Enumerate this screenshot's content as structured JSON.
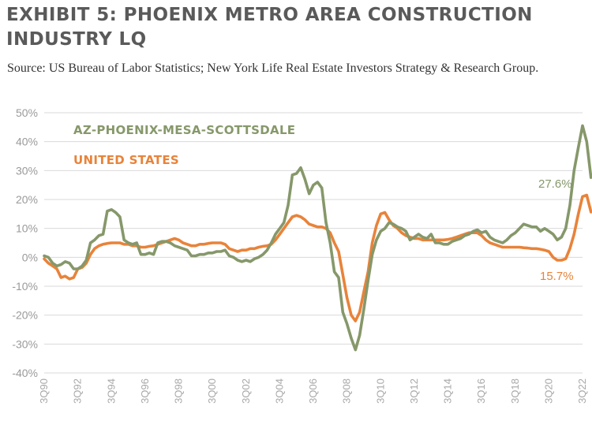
{
  "header": {
    "title": "EXHIBIT 5: PHOENIX METRO AREA CONSTRUCTION INDUSTRY LQ",
    "source": "Source: US Bureau of Labor Statistics; New York Life Real Estate Investors Strategy & Research Group."
  },
  "colors": {
    "phoenix": "#86986a",
    "us": "#e8833a",
    "grid": "#d9d9d9",
    "axis_text": "#9a9a9a"
  },
  "chart_data": {
    "type": "line",
    "title": "EXHIBIT 5: PHOENIX METRO AREA CONSTRUCTION INDUSTRY LQ",
    "xlabel": "",
    "ylabel": "",
    "ylim": [
      -40,
      50
    ],
    "yticks": [
      -40,
      -30,
      -20,
      -10,
      0,
      10,
      20,
      30,
      40,
      50
    ],
    "ytick_labels": [
      "-40%",
      "-30%",
      "-20%",
      "-10%",
      "0%",
      "10%",
      "20%",
      "30%",
      "40%",
      "50%"
    ],
    "xlim": [
      1990.5,
      2022.5
    ],
    "xticks": [
      1990.5,
      1992.5,
      1994.5,
      1996.5,
      1998.5,
      2000.5,
      2002.5,
      2004.5,
      2006.5,
      2008.5,
      2010.5,
      2012.5,
      2014.5,
      2016.5,
      2018.5,
      2020.5,
      2022.5
    ],
    "xtick_labels": [
      "3Q90",
      "3Q92",
      "3Q94",
      "3Q96",
      "3Q98",
      "3Q00",
      "3Q02",
      "3Q04",
      "3Q06",
      "3Q08",
      "3Q10",
      "3Q12",
      "3Q14",
      "3Q16",
      "3Q18",
      "3Q20",
      "3Q22"
    ],
    "grid": true,
    "legend": "top-left",
    "series": [
      {
        "name": "AZ-PHOENIX-MESA-SCOTTSDALE",
        "end_label": "27.6%",
        "points": [
          [
            1990.5,
            0.5
          ],
          [
            1990.75,
            0
          ],
          [
            1991.0,
            -2
          ],
          [
            1991.25,
            -3
          ],
          [
            1991.5,
            -2.5
          ],
          [
            1991.75,
            -1.5
          ],
          [
            1992.0,
            -2
          ],
          [
            1992.25,
            -4
          ],
          [
            1992.5,
            -4
          ],
          [
            1992.75,
            -3
          ],
          [
            1993.0,
            -1
          ],
          [
            1993.25,
            5
          ],
          [
            1993.5,
            6
          ],
          [
            1993.75,
            7.5
          ],
          [
            1994.0,
            8
          ],
          [
            1994.25,
            16
          ],
          [
            1994.5,
            16.5
          ],
          [
            1994.75,
            15.5
          ],
          [
            1995.0,
            14
          ],
          [
            1995.25,
            6
          ],
          [
            1995.5,
            5
          ],
          [
            1995.75,
            4.5
          ],
          [
            1996.0,
            5
          ],
          [
            1996.25,
            1
          ],
          [
            1996.5,
            1
          ],
          [
            1996.75,
            1.5
          ],
          [
            1997.0,
            1
          ],
          [
            1997.25,
            5
          ],
          [
            1997.5,
            5.5
          ],
          [
            1997.75,
            5.5
          ],
          [
            1998.0,
            5
          ],
          [
            1998.25,
            4
          ],
          [
            1998.5,
            3.5
          ],
          [
            1998.75,
            3
          ],
          [
            1999.0,
            2.5
          ],
          [
            1999.25,
            0.5
          ],
          [
            1999.5,
            0.5
          ],
          [
            1999.75,
            1
          ],
          [
            2000.0,
            1
          ],
          [
            2000.25,
            1.5
          ],
          [
            2000.5,
            1.5
          ],
          [
            2000.75,
            2
          ],
          [
            2001.0,
            2
          ],
          [
            2001.25,
            2.5
          ],
          [
            2001.5,
            0.5
          ],
          [
            2001.75,
            0
          ],
          [
            2002.0,
            -1
          ],
          [
            2002.25,
            -1.5
          ],
          [
            2002.5,
            -1
          ],
          [
            2002.75,
            -1.5
          ],
          [
            2003.0,
            -0.5
          ],
          [
            2003.25,
            0
          ],
          [
            2003.5,
            1
          ],
          [
            2003.75,
            2.5
          ],
          [
            2004.0,
            5
          ],
          [
            2004.25,
            8
          ],
          [
            2004.5,
            10
          ],
          [
            2004.75,
            12
          ],
          [
            2005.0,
            18
          ],
          [
            2005.25,
            28.5
          ],
          [
            2005.5,
            29
          ],
          [
            2005.75,
            31
          ],
          [
            2006.0,
            27
          ],
          [
            2006.25,
            22
          ],
          [
            2006.5,
            25
          ],
          [
            2006.75,
            26
          ],
          [
            2007.0,
            24
          ],
          [
            2007.25,
            12
          ],
          [
            2007.5,
            5
          ],
          [
            2007.75,
            -5
          ],
          [
            2008.0,
            -7
          ],
          [
            2008.25,
            -19
          ],
          [
            2008.5,
            -23
          ],
          [
            2008.75,
            -28
          ],
          [
            2009.0,
            -32
          ],
          [
            2009.25,
            -27
          ],
          [
            2009.5,
            -18
          ],
          [
            2009.75,
            -8
          ],
          [
            2010.0,
            1
          ],
          [
            2010.25,
            6
          ],
          [
            2010.5,
            9
          ],
          [
            2010.75,
            10
          ],
          [
            2011.0,
            12
          ],
          [
            2011.25,
            11.5
          ],
          [
            2011.5,
            10.5
          ],
          [
            2011.75,
            10
          ],
          [
            2012.0,
            9
          ],
          [
            2012.25,
            6
          ],
          [
            2012.5,
            7
          ],
          [
            2012.75,
            8
          ],
          [
            2013.0,
            7
          ],
          [
            2013.25,
            6.5
          ],
          [
            2013.5,
            8
          ],
          [
            2013.75,
            5
          ],
          [
            2014.0,
            5
          ],
          [
            2014.25,
            4.5
          ],
          [
            2014.5,
            4.5
          ],
          [
            2014.75,
            5.5
          ],
          [
            2015.0,
            6
          ],
          [
            2015.25,
            6.5
          ],
          [
            2015.5,
            7.5
          ],
          [
            2015.75,
            8
          ],
          [
            2016.0,
            9
          ],
          [
            2016.25,
            9.5
          ],
          [
            2016.5,
            8.5
          ],
          [
            2016.75,
            9
          ],
          [
            2017.0,
            7
          ],
          [
            2017.25,
            6
          ],
          [
            2017.5,
            5.5
          ],
          [
            2017.75,
            5
          ],
          [
            2018.0,
            6
          ],
          [
            2018.25,
            7.5
          ],
          [
            2018.5,
            8.5
          ],
          [
            2018.75,
            10
          ],
          [
            2019.0,
            11.5
          ],
          [
            2019.25,
            11
          ],
          [
            2019.5,
            10.5
          ],
          [
            2019.75,
            10.5
          ],
          [
            2020.0,
            9
          ],
          [
            2020.25,
            10
          ],
          [
            2020.5,
            9
          ],
          [
            2020.75,
            8
          ],
          [
            2021.0,
            6
          ],
          [
            2021.25,
            7
          ],
          [
            2021.5,
            10
          ],
          [
            2021.75,
            18
          ],
          [
            2022.0,
            30
          ],
          [
            2022.25,
            38
          ],
          [
            2022.5,
            45.5
          ],
          [
            2022.75,
            40
          ],
          [
            2023.0,
            27.6
          ]
        ]
      },
      {
        "name": "UNITED STATES",
        "end_label": "15.7%",
        "points": [
          [
            1990.5,
            -0.5
          ],
          [
            1990.75,
            -2
          ],
          [
            1991.0,
            -3
          ],
          [
            1991.25,
            -4
          ],
          [
            1991.5,
            -7
          ],
          [
            1991.75,
            -6.5
          ],
          [
            1992.0,
            -7.5
          ],
          [
            1992.25,
            -7
          ],
          [
            1992.5,
            -4
          ],
          [
            1992.75,
            -3.5
          ],
          [
            1993.0,
            -2
          ],
          [
            1993.25,
            1
          ],
          [
            1993.5,
            3
          ],
          [
            1993.75,
            4
          ],
          [
            1994.0,
            4.5
          ],
          [
            1994.25,
            4.8
          ],
          [
            1994.5,
            5
          ],
          [
            1994.75,
            5
          ],
          [
            1995.0,
            5
          ],
          [
            1995.25,
            4.5
          ],
          [
            1995.5,
            4.5
          ],
          [
            1995.75,
            4
          ],
          [
            1996.0,
            4
          ],
          [
            1996.25,
            3.5
          ],
          [
            1996.5,
            3.5
          ],
          [
            1996.75,
            3.8
          ],
          [
            1997.0,
            4
          ],
          [
            1997.25,
            4.5
          ],
          [
            1997.5,
            5
          ],
          [
            1997.75,
            5.5
          ],
          [
            1998.0,
            6
          ],
          [
            1998.25,
            6.5
          ],
          [
            1998.5,
            6
          ],
          [
            1998.75,
            5
          ],
          [
            1999.0,
            4.5
          ],
          [
            1999.25,
            4
          ],
          [
            1999.5,
            4
          ],
          [
            1999.75,
            4.5
          ],
          [
            2000.0,
            4.5
          ],
          [
            2000.25,
            4.8
          ],
          [
            2000.5,
            5
          ],
          [
            2000.75,
            5
          ],
          [
            2001.0,
            5
          ],
          [
            2001.25,
            4.5
          ],
          [
            2001.5,
            3
          ],
          [
            2001.75,
            2.5
          ],
          [
            2002.0,
            2
          ],
          [
            2002.25,
            2.5
          ],
          [
            2002.5,
            2.5
          ],
          [
            2002.75,
            3
          ],
          [
            2003.0,
            3
          ],
          [
            2003.25,
            3.5
          ],
          [
            2003.5,
            3.8
          ],
          [
            2003.75,
            4
          ],
          [
            2004.0,
            4.5
          ],
          [
            2004.25,
            6
          ],
          [
            2004.5,
            8
          ],
          [
            2004.75,
            10
          ],
          [
            2005.0,
            12
          ],
          [
            2005.25,
            14
          ],
          [
            2005.5,
            14.5
          ],
          [
            2005.75,
            14
          ],
          [
            2006.0,
            13
          ],
          [
            2006.25,
            11.5
          ],
          [
            2006.5,
            11
          ],
          [
            2006.75,
            10.5
          ],
          [
            2007.0,
            10.5
          ],
          [
            2007.25,
            10
          ],
          [
            2007.5,
            8.5
          ],
          [
            2007.75,
            5
          ],
          [
            2008.0,
            2
          ],
          [
            2008.25,
            -6
          ],
          [
            2008.5,
            -14
          ],
          [
            2008.75,
            -20
          ],
          [
            2009.0,
            -22
          ],
          [
            2009.25,
            -19
          ],
          [
            2009.5,
            -12
          ],
          [
            2009.75,
            -5
          ],
          [
            2010.0,
            5
          ],
          [
            2010.25,
            11
          ],
          [
            2010.5,
            15
          ],
          [
            2010.75,
            15.5
          ],
          [
            2011.0,
            13
          ],
          [
            2011.25,
            11
          ],
          [
            2011.5,
            10
          ],
          [
            2011.75,
            8.5
          ],
          [
            2012.0,
            7.5
          ],
          [
            2012.25,
            7
          ],
          [
            2012.5,
            6.5
          ],
          [
            2012.75,
            6.5
          ],
          [
            2013.0,
            6
          ],
          [
            2013.25,
            6
          ],
          [
            2013.5,
            6
          ],
          [
            2013.75,
            6
          ],
          [
            2014.0,
            6
          ],
          [
            2014.25,
            6
          ],
          [
            2014.5,
            6.2
          ],
          [
            2014.75,
            6.5
          ],
          [
            2015.0,
            7
          ],
          [
            2015.25,
            7.5
          ],
          [
            2015.5,
            8
          ],
          [
            2015.75,
            8.5
          ],
          [
            2016.0,
            8.5
          ],
          [
            2016.25,
            8.5
          ],
          [
            2016.5,
            7.5
          ],
          [
            2016.75,
            6
          ],
          [
            2017.0,
            5
          ],
          [
            2017.25,
            4.5
          ],
          [
            2017.5,
            4
          ],
          [
            2017.75,
            3.5
          ],
          [
            2018.0,
            3.5
          ],
          [
            2018.25,
            3.5
          ],
          [
            2018.5,
            3.5
          ],
          [
            2018.75,
            3.5
          ],
          [
            2019.0,
            3.3
          ],
          [
            2019.25,
            3.2
          ],
          [
            2019.5,
            3
          ],
          [
            2019.75,
            3
          ],
          [
            2020.0,
            2.8
          ],
          [
            2020.25,
            2.5
          ],
          [
            2020.5,
            2
          ],
          [
            2020.75,
            0
          ],
          [
            2021.0,
            -1
          ],
          [
            2021.25,
            -1
          ],
          [
            2021.5,
            -0.5
          ],
          [
            2021.75,
            3
          ],
          [
            2022.0,
            8
          ],
          [
            2022.25,
            15
          ],
          [
            2022.5,
            21
          ],
          [
            2022.75,
            21.5
          ],
          [
            2023.0,
            15.7
          ]
        ]
      }
    ]
  }
}
